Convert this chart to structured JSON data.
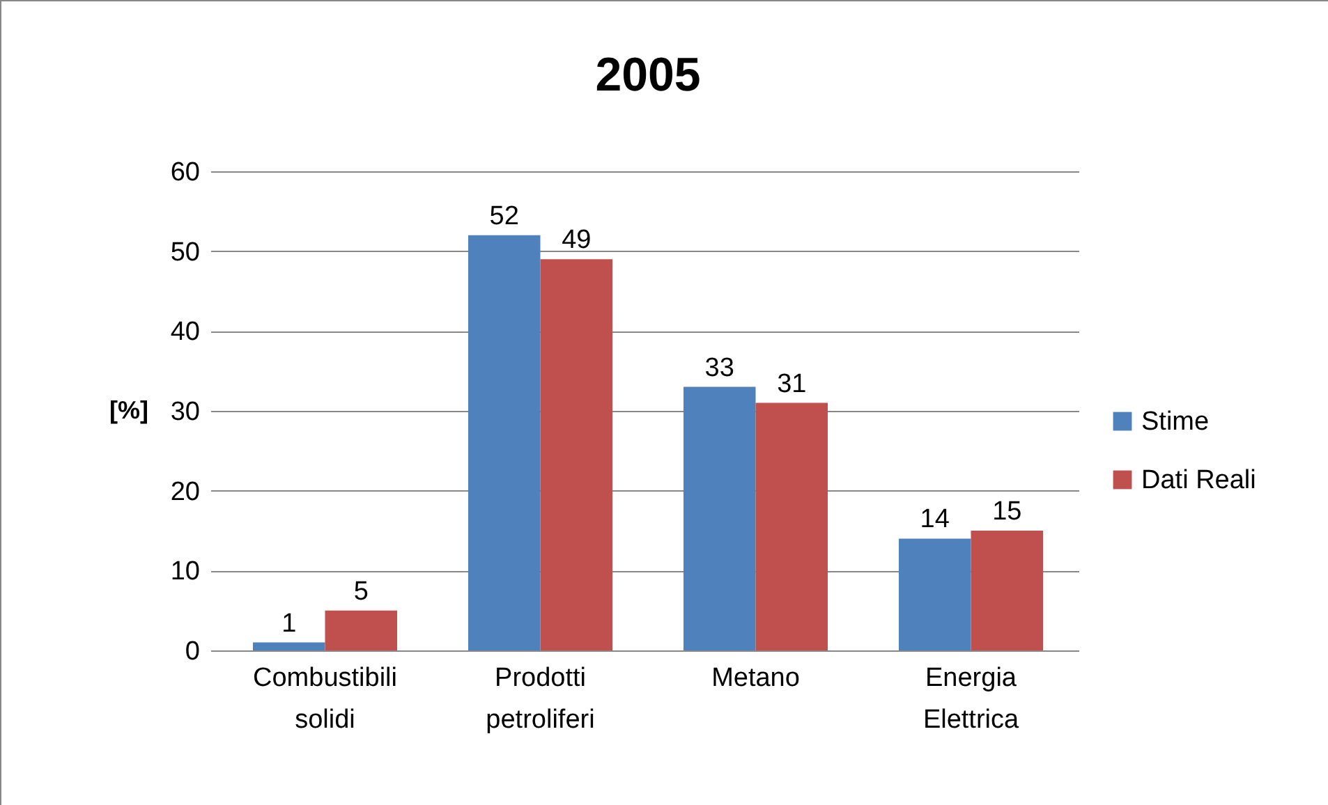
{
  "chart_data": {
    "type": "bar",
    "title": "2005",
    "ylabel": "[%]",
    "categories": [
      "Combustibili solidi",
      "Prodotti petroliferi",
      "Metano",
      "Energia Elettrica"
    ],
    "series": [
      {
        "name": "Stime",
        "color": "#4f81bd",
        "values": [
          1,
          52,
          33,
          14
        ]
      },
      {
        "name": "Dati Reali",
        "color": "#c0504d",
        "values": [
          5,
          49,
          31,
          15
        ]
      }
    ],
    "ylim": [
      0,
      60
    ],
    "yticks": [
      0,
      10,
      20,
      30,
      40,
      50,
      60
    ],
    "grid": "y",
    "legend": "right",
    "data_labels": true
  }
}
